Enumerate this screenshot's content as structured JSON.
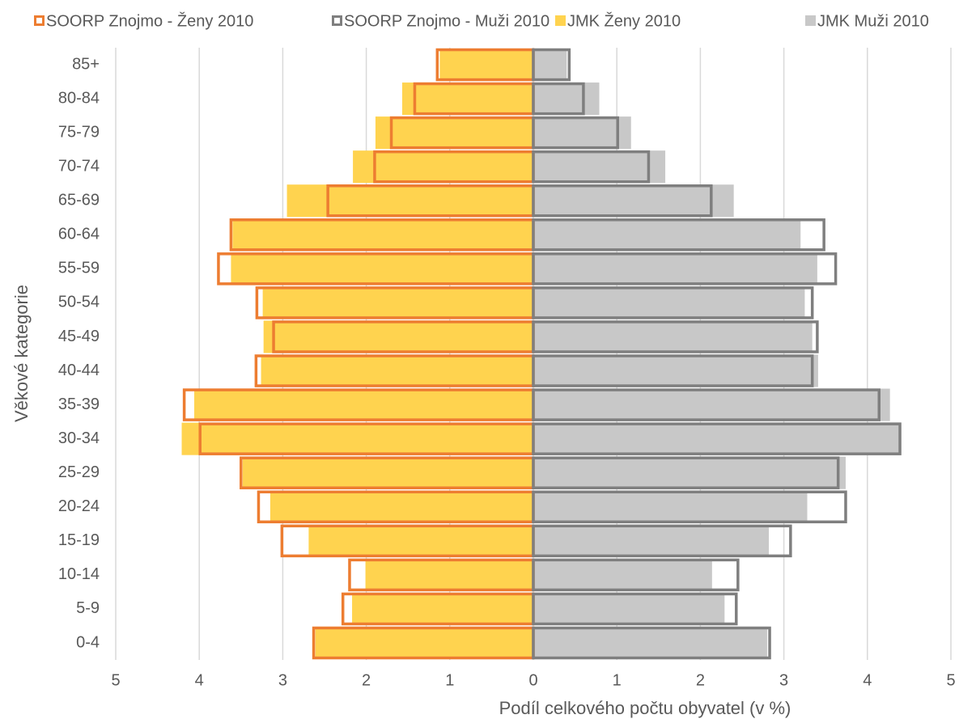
{
  "chart_data": {
    "type": "pyramid",
    "xlabel": "Podíl celkového počtu obyvatel (v %)",
    "ylabel": "Věkové kategorie",
    "legend": "top",
    "grid": true,
    "categories": [
      "85+",
      "80-84",
      "75-79",
      "70-74",
      "65-69",
      "60-64",
      "55-59",
      "50-54",
      "45-49",
      "40-44",
      "35-39",
      "30-34",
      "25-29",
      "20-24",
      "15-19",
      "10-14",
      "5-9",
      "0-4"
    ],
    "series": [
      {
        "name": "SOORP Znojmo - Ženy 2010",
        "color": "#ed7d31",
        "outline": true,
        "values": [
          -1.15,
          -1.42,
          -1.7,
          -1.9,
          -2.46,
          -3.62,
          -3.77,
          -3.31,
          -3.11,
          -3.32,
          -4.18,
          -3.99,
          -3.5,
          -3.29,
          -3.01,
          -2.2,
          -2.28,
          -2.63
        ]
      },
      {
        "name": "SOORP Znojmo - Muži 2010",
        "color": "#7f7f7f",
        "outline": true,
        "values": [
          0.43,
          0.6,
          1.01,
          1.38,
          2.13,
          3.48,
          3.62,
          3.34,
          3.4,
          3.34,
          4.14,
          4.39,
          3.65,
          3.74,
          3.08,
          2.45,
          2.43,
          2.83
        ]
      },
      {
        "name": "JMK Ženy 2010",
        "color": "#ffd34f",
        "outline": false,
        "values": [
          -1.12,
          -1.57,
          -1.89,
          -2.16,
          -2.95,
          -3.6,
          -3.62,
          -3.24,
          -3.23,
          -3.26,
          -4.06,
          -4.21,
          -3.48,
          -3.15,
          -2.69,
          -2.01,
          -2.17,
          -2.61
        ]
      },
      {
        "name": "JMK Muži 2010",
        "color": "#c8c8c8",
        "outline": false,
        "values": [
          0.4,
          0.79,
          1.17,
          1.58,
          2.4,
          3.2,
          3.4,
          3.25,
          3.34,
          3.41,
          4.27,
          4.4,
          3.74,
          3.28,
          2.82,
          2.14,
          2.29,
          2.8
        ]
      }
    ],
    "xlim": [
      -5,
      5
    ],
    "xticks": [
      {
        "value": -5,
        "label": "5"
      },
      {
        "value": -4,
        "label": "4"
      },
      {
        "value": -3,
        "label": "3"
      },
      {
        "value": -2,
        "label": "2"
      },
      {
        "value": -1,
        "label": "1"
      },
      0,
      1,
      2,
      3,
      4,
      5
    ]
  }
}
